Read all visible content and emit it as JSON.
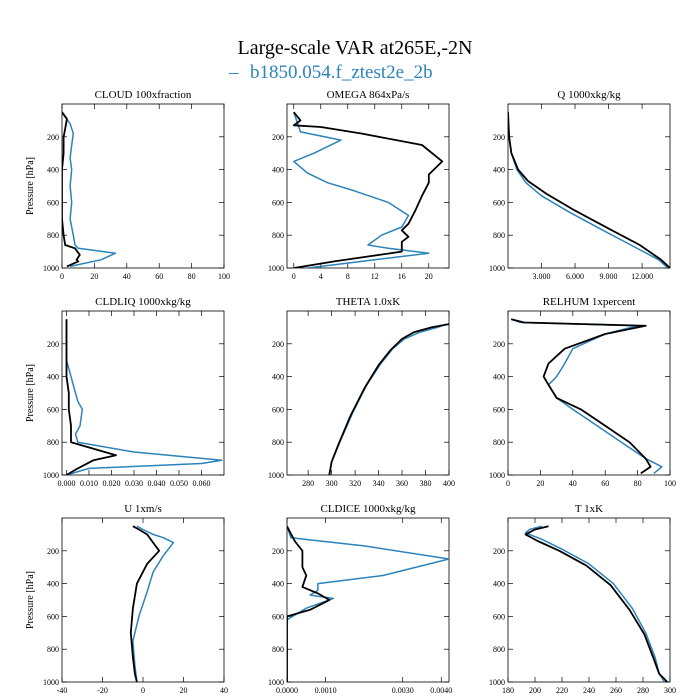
{
  "figure": {
    "title": "Large-scale VAR at265E,-2N",
    "legend": {
      "label": "b1850.054.f_ztest2e_2b",
      "color": "#2b83ba",
      "symbol": "–"
    }
  },
  "colors": {
    "series_blue": "#2b83ba",
    "series_black": "#000000"
  },
  "chart_data": [
    {
      "type": "line",
      "title": "CLOUD  100xfraction",
      "ylabel": "Pressure [hPa]",
      "xlim": [
        0,
        100
      ],
      "ylim": [
        1000,
        0
      ],
      "xticks": [
        0,
        20,
        40,
        60,
        80,
        100
      ],
      "xtick_labels": [
        "0",
        "20",
        "40",
        "60",
        "80",
        "100"
      ],
      "yticks": [
        200,
        400,
        600,
        800,
        1000
      ],
      "ytick_labels": [
        "200",
        "400",
        "600",
        "800",
        "1000"
      ],
      "series": [
        {
          "color": "blue",
          "x": [
            0,
            2,
            5,
            7,
            6,
            5,
            6,
            5,
            6,
            5,
            7,
            8,
            10,
            33,
            24,
            5
          ],
          "y": [
            50,
            80,
            120,
            180,
            250,
            330,
            400,
            500,
            600,
            700,
            800,
            860,
            880,
            910,
            950,
            990
          ]
        },
        {
          "color": "black",
          "x": [
            0,
            3,
            2,
            1,
            1,
            0,
            0,
            0,
            0,
            1,
            2,
            8,
            11,
            9,
            10,
            3
          ],
          "y": [
            50,
            90,
            150,
            200,
            300,
            400,
            500,
            600,
            700,
            800,
            860,
            880,
            920,
            950,
            960,
            990
          ]
        }
      ]
    },
    {
      "type": "line",
      "title": "OMEGA  864xPa/s",
      "ylabel": "",
      "xlim": [
        -1,
        23
      ],
      "ylim": [
        1000,
        0
      ],
      "xticks": [
        0,
        4,
        8,
        12,
        16,
        20
      ],
      "xtick_labels": [
        "0",
        "4",
        "8",
        "12",
        "16",
        "20"
      ],
      "yticks": [
        200,
        400,
        600,
        800,
        1000
      ],
      "ytick_labels": [
        "200",
        "400",
        "600",
        "800",
        "1000"
      ],
      "series": [
        {
          "color": "blue",
          "x": [
            0,
            1,
            7,
            3,
            0,
            2,
            5,
            9,
            14,
            17,
            16,
            13,
            11,
            14,
            20,
            12,
            6,
            2
          ],
          "y": [
            50,
            170,
            220,
            300,
            350,
            420,
            480,
            530,
            600,
            680,
            750,
            800,
            860,
            880,
            910,
            950,
            980,
            1000
          ]
        },
        {
          "color": "black",
          "x": [
            0,
            1,
            0,
            4,
            10,
            19,
            22,
            20,
            20,
            19,
            18,
            17,
            16,
            17,
            16,
            16,
            6,
            0
          ],
          "y": [
            50,
            100,
            130,
            140,
            180,
            250,
            350,
            430,
            480,
            560,
            650,
            730,
            770,
            810,
            840,
            900,
            960,
            1000
          ]
        }
      ]
    },
    {
      "type": "line",
      "title": "Q  1000xkg/kg",
      "ylabel": "",
      "xlim": [
        0,
        14.5
      ],
      "ylim": [
        1000,
        0
      ],
      "xticks": [
        3,
        6,
        9,
        12
      ],
      "xtick_labels": [
        "3.000",
        "6.000",
        "9.000",
        "12.000"
      ],
      "yticks": [
        200,
        400,
        600,
        800,
        1000
      ],
      "ytick_labels": [
        "200",
        "400",
        "600",
        "800",
        "1000"
      ],
      "series": [
        {
          "color": "blue",
          "x": [
            0,
            0.1,
            0.3,
            0.8,
            1.6,
            3,
            5.5,
            8.5,
            11,
            13.5,
            14.3
          ],
          "y": [
            50,
            200,
            300,
            400,
            480,
            560,
            660,
            770,
            860,
            950,
            1000
          ]
        },
        {
          "color": "black",
          "x": [
            0,
            0.1,
            0.3,
            0.9,
            1.8,
            3.5,
            6,
            9.3,
            11.8,
            13.7,
            14.5
          ],
          "y": [
            50,
            200,
            300,
            400,
            470,
            550,
            650,
            770,
            860,
            950,
            1000
          ]
        }
      ]
    },
    {
      "type": "line",
      "title": "CLDLIQ  1000xkg/kg",
      "ylabel": "Pressure [hPa]",
      "xlim": [
        -0.002,
        0.07
      ],
      "ylim": [
        1000,
        0
      ],
      "xticks": [
        0,
        0.01,
        0.02,
        0.03,
        0.04,
        0.05,
        0.06
      ],
      "xtick_labels": [
        "0.000",
        "0.010",
        "0.020",
        "0.030",
        "0.040",
        "0.050",
        "0.060"
      ],
      "yticks": [
        200,
        400,
        600,
        800,
        1000
      ],
      "ytick_labels": [
        "200",
        "400",
        "600",
        "800",
        "1000"
      ],
      "series": [
        {
          "color": "blue",
          "x": [
            0,
            0,
            0.002,
            0.004,
            0.005,
            0.007,
            0.006,
            0.004,
            0.005,
            0.03,
            0.069,
            0.06,
            0.01,
            0
          ],
          "y": [
            50,
            300,
            400,
            500,
            550,
            600,
            700,
            750,
            800,
            860,
            910,
            930,
            960,
            1000
          ]
        },
        {
          "color": "black",
          "x": [
            0,
            0,
            0.001,
            0.001,
            0.002,
            0.002,
            0.022,
            0.012,
            0.005,
            0
          ],
          "y": [
            50,
            400,
            500,
            600,
            700,
            800,
            880,
            910,
            960,
            1000
          ]
        }
      ]
    },
    {
      "type": "line",
      "title": "THETA  1.0xK",
      "ylabel": "",
      "xlim": [
        262,
        400
      ],
      "ylim": [
        1000,
        0
      ],
      "xticks": [
        280,
        300,
        320,
        340,
        360,
        380,
        400
      ],
      "xtick_labels": [
        "280",
        "300",
        "320",
        "340",
        "360",
        "380",
        "400"
      ],
      "yticks": [
        200,
        400,
        600,
        800,
        1000
      ],
      "ytick_labels": [
        "200",
        "400",
        "600",
        "800",
        "1000"
      ],
      "series": [
        {
          "color": "blue",
          "x": [
            398,
            390,
            375,
            362,
            352,
            342,
            330,
            318,
            307,
            300,
            298
          ],
          "y": [
            80,
            100,
            130,
            170,
            230,
            320,
            450,
            620,
            800,
            920,
            1000
          ]
        },
        {
          "color": "black",
          "x": [
            400,
            385,
            370,
            360,
            350,
            340,
            328,
            316,
            306,
            300,
            298
          ],
          "y": [
            80,
            100,
            130,
            170,
            240,
            330,
            470,
            640,
            810,
            920,
            1000
          ]
        }
      ]
    },
    {
      "type": "line",
      "title": "RELHUM  1xpercent",
      "ylabel": "",
      "xlim": [
        0,
        100
      ],
      "ylim": [
        1000,
        0
      ],
      "xticks": [
        0,
        20,
        40,
        60,
        80,
        100
      ],
      "xtick_labels": [
        "0",
        "20",
        "40",
        "60",
        "80",
        "100"
      ],
      "yticks": [
        200,
        400,
        600,
        800,
        1000
      ],
      "ytick_labels": [
        "200",
        "400",
        "600",
        "800",
        "1000"
      ],
      "series": [
        {
          "color": "blue",
          "x": [
            2,
            8,
            80,
            60,
            40,
            35,
            30,
            25,
            30,
            40,
            55,
            70,
            85,
            95,
            90
          ],
          "y": [
            50,
            70,
            90,
            140,
            230,
            320,
            400,
            450,
            530,
            600,
            700,
            800,
            900,
            950,
            990
          ]
        },
        {
          "color": "black",
          "x": [
            2,
            10,
            85,
            60,
            35,
            25,
            22,
            25,
            30,
            45,
            60,
            75,
            85,
            88,
            82
          ],
          "y": [
            50,
            70,
            90,
            140,
            230,
            320,
            400,
            450,
            530,
            600,
            700,
            800,
            900,
            950,
            990
          ]
        }
      ]
    },
    {
      "type": "line",
      "title": "U  1xm/s",
      "ylabel": "Pressure [hPa]",
      "xlim": [
        -40,
        40
      ],
      "ylim": [
        1000,
        0
      ],
      "xticks": [
        -40,
        -20,
        0,
        20,
        40
      ],
      "xtick_labels": [
        "-40",
        "-20",
        "0",
        "20",
        "40"
      ],
      "yticks": [
        200,
        400,
        600,
        800,
        1000
      ],
      "ytick_labels": [
        "200",
        "400",
        "600",
        "800",
        "1000"
      ],
      "series": [
        {
          "color": "blue",
          "x": [
            -3,
            0,
            5,
            10,
            15,
            10,
            5,
            2,
            -2,
            -5,
            -4,
            -3
          ],
          "y": [
            50,
            70,
            100,
            120,
            150,
            230,
            330,
            450,
            600,
            750,
            900,
            1000
          ]
        },
        {
          "color": "black",
          "x": [
            -5,
            -2,
            2,
            5,
            8,
            2,
            -3,
            -5,
            -6,
            -5,
            -4,
            -3
          ],
          "y": [
            50,
            70,
            100,
            150,
            200,
            280,
            400,
            550,
            700,
            850,
            950,
            1000
          ]
        }
      ]
    },
    {
      "type": "line",
      "title": "CLDICE  1000xkg/kg",
      "ylabel": "",
      "xlim": [
        0,
        0.0042
      ],
      "ylim": [
        1000,
        0
      ],
      "xticks": [
        0,
        0.001,
        0.003,
        0.004
      ],
      "xtick_labels": [
        "0.0000",
        "0.0010",
        "0.0030",
        "0.0040"
      ],
      "yticks": [
        200,
        400,
        600,
        800,
        1000
      ],
      "ytick_labels": [
        "200",
        "400",
        "600",
        "800",
        "1000"
      ],
      "series": [
        {
          "color": "blue",
          "x": [
            0,
            0.0001,
            0.002,
            0.0042,
            0.0025,
            0.0008,
            0.0008,
            0.0006,
            0.0012,
            0.0005,
            0,
            0
          ],
          "y": [
            50,
            120,
            170,
            250,
            350,
            400,
            440,
            470,
            490,
            550,
            620,
            1000
          ]
        },
        {
          "color": "black",
          "x": [
            0,
            0.0002,
            0.0004,
            0.0004,
            0.0005,
            0.0004,
            0.0008,
            0.0011,
            0.0006,
            0,
            0
          ],
          "y": [
            50,
            140,
            200,
            300,
            350,
            420,
            460,
            500,
            560,
            600,
            1000
          ]
        }
      ]
    },
    {
      "type": "line",
      "title": "T  1xK",
      "ylabel": "",
      "xlim": [
        180,
        300
      ],
      "ylim": [
        1000,
        0
      ],
      "xticks": [
        180,
        200,
        220,
        240,
        260,
        280,
        300
      ],
      "xtick_labels": [
        "180",
        "200",
        "220",
        "240",
        "260",
        "280",
        "300"
      ],
      "yticks": [
        200,
        400,
        600,
        800,
        1000
      ],
      "ytick_labels": [
        "200",
        "400",
        "600",
        "800",
        "1000"
      ],
      "series": [
        {
          "color": "blue",
          "x": [
            205,
            196,
            193,
            205,
            220,
            240,
            258,
            272,
            282,
            289,
            292,
            296
          ],
          "y": [
            50,
            70,
            90,
            130,
            190,
            280,
            400,
            550,
            700,
            850,
            950,
            1000
          ]
        },
        {
          "color": "black",
          "x": [
            210,
            200,
            193,
            202,
            218,
            238,
            256,
            270,
            281,
            288,
            292,
            298
          ],
          "y": [
            50,
            70,
            100,
            140,
            200,
            290,
            410,
            560,
            710,
            860,
            950,
            1000
          ]
        }
      ]
    }
  ]
}
